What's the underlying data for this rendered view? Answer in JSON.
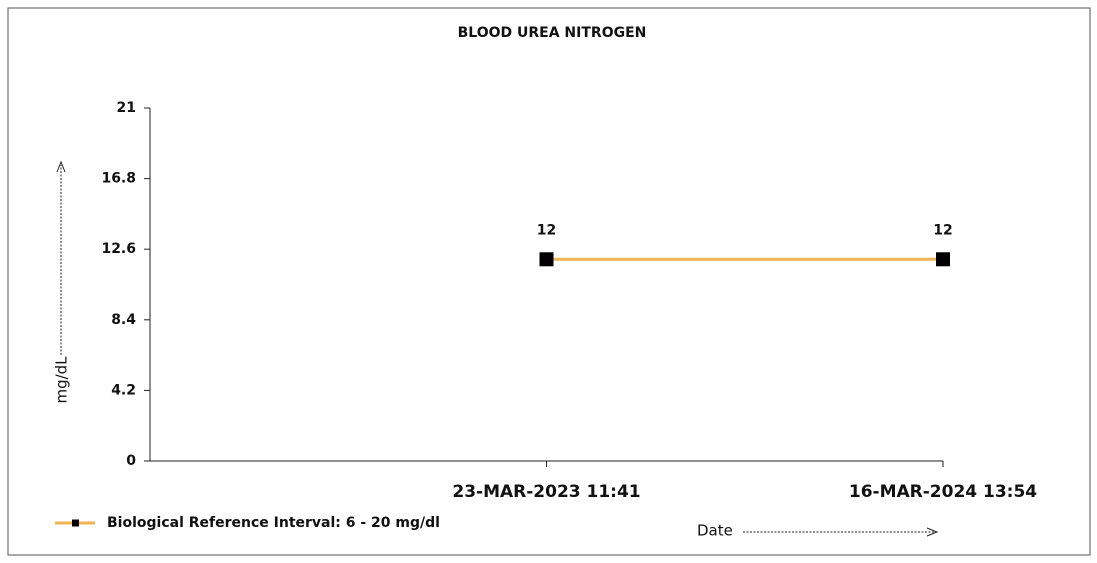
{
  "chart_data": {
    "type": "line",
    "title": "BLOOD UREA NITROGEN",
    "categories": [
      "23-MAR-2023 11:41",
      "16-MAR-2024 13:54"
    ],
    "series": [
      {
        "name": "Biological Reference Interval: 6 - 20 mg/dl",
        "color": "#f0b552",
        "marker_color": "#000000",
        "values": [
          12,
          12
        ]
      }
    ],
    "ylabel": "mg/dL",
    "xlabel": "Date",
    "ylim": [
      0,
      21
    ],
    "yticks": [
      0,
      4.2,
      8.4,
      12.6,
      16.8,
      21
    ],
    "grid": false
  }
}
